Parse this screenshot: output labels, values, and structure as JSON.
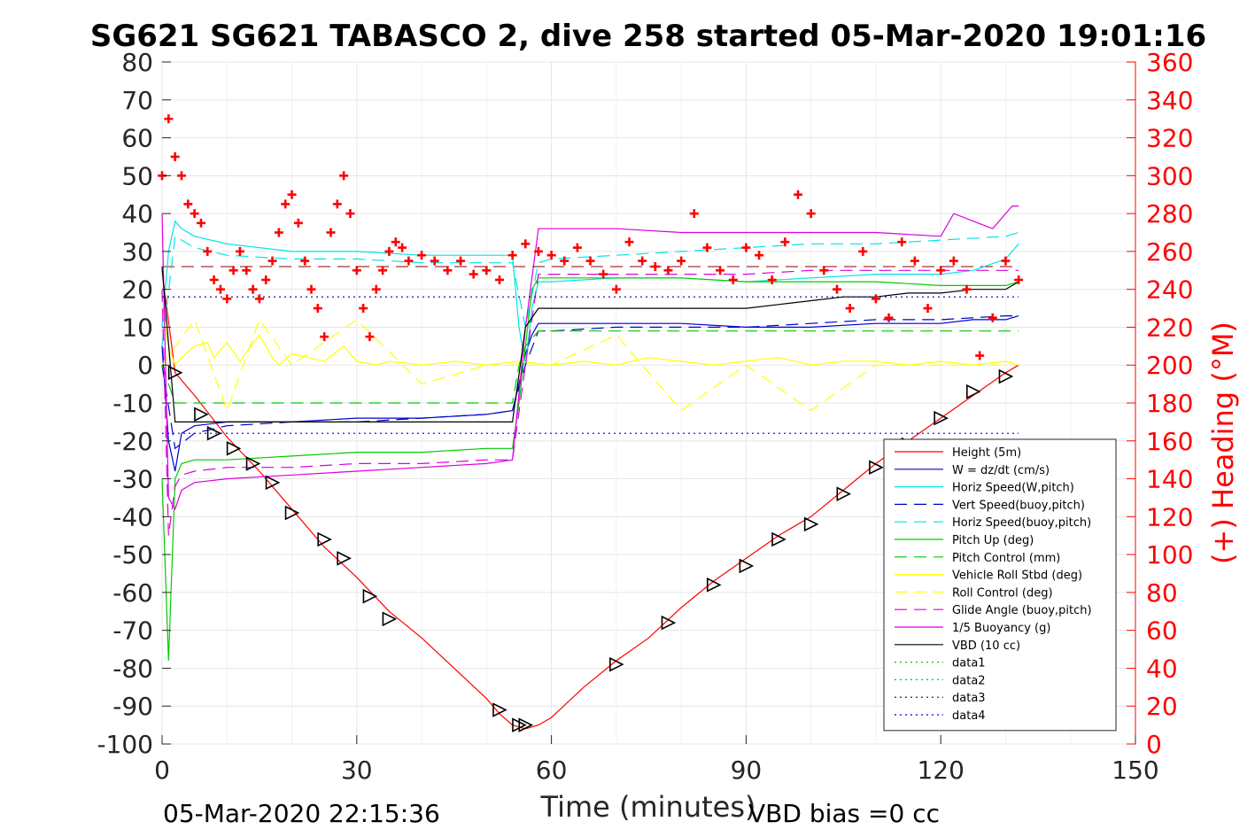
{
  "chart_data": {
    "type": "line",
    "title": "SG621 SG621 TABASCO 2, dive 258 started 05-Mar-2020 19:01:16",
    "xlabel": "Time (minutes)",
    "ylabel": "",
    "ylabel_right": "(+) Heading (°M)",
    "xlim": [
      0,
      150
    ],
    "ylim": [
      -100,
      80
    ],
    "ylim_right": [
      0,
      360
    ],
    "x_ticks": [
      "0",
      "30",
      "60",
      "90",
      "120",
      "150"
    ],
    "y_ticks": [
      "80",
      "70",
      "60",
      "50",
      "40",
      "30",
      "20",
      "10",
      "0",
      "-10",
      "-20",
      "-30",
      "-40",
      "-50",
      "-60",
      "-70",
      "-80",
      "-90",
      "-100"
    ],
    "y_ticks_right": [
      "360",
      "340",
      "320",
      "300",
      "280",
      "260",
      "240",
      "220",
      "200",
      "180",
      "160",
      "140",
      "120",
      "100",
      "80",
      "60",
      "40",
      "20",
      "0"
    ],
    "grid": true,
    "legend_position": "bottom-right",
    "footer_left": "05-Mar-2020 22:15:36",
    "footer_right": "VBD bias =0 cc",
    "series": [
      {
        "name": "Height (5m)",
        "color": "#ff0000",
        "style": "solid",
        "x": [
          0,
          2,
          5,
          10,
          15,
          20,
          25,
          30,
          35,
          40,
          45,
          50,
          52,
          54,
          56,
          58,
          60,
          65,
          70,
          75,
          80,
          85,
          90,
          95,
          100,
          105,
          110,
          115,
          120,
          125,
          130,
          132
        ],
        "values": [
          25,
          -2,
          -8,
          -19,
          -28,
          -38,
          -48,
          -56,
          -65,
          -72,
          -80,
          -88,
          -92,
          -95,
          -96,
          -95,
          -93,
          -85,
          -78,
          -72,
          -64,
          -57,
          -51,
          -45,
          -40,
          -33,
          -26,
          -20,
          -14,
          -8,
          -2,
          0
        ]
      },
      {
        "name": "W = dz/dt (cm/s)",
        "color": "#0000cc",
        "style": "solid",
        "x": [
          0,
          1,
          2,
          3,
          5,
          10,
          20,
          30,
          40,
          50,
          54,
          55,
          56,
          57,
          58,
          60,
          70,
          80,
          90,
          100,
          110,
          120,
          125,
          130,
          132
        ],
        "values": [
          5,
          -20,
          -28,
          -18,
          -16,
          -15,
          -15,
          -14,
          -14,
          -13,
          -12,
          -5,
          3,
          8,
          11,
          11,
          11,
          11,
          10,
          10,
          11,
          11,
          12,
          12,
          13
        ]
      },
      {
        "name": "Horiz Speed(W,pitch)",
        "color": "#00e5e5",
        "style": "solid",
        "x": [
          0,
          1,
          2,
          3,
          5,
          10,
          20,
          30,
          40,
          50,
          54,
          55,
          56,
          57,
          58,
          60,
          70,
          80,
          90,
          100,
          110,
          120,
          125,
          130,
          132
        ],
        "values": [
          10,
          30,
          38,
          36,
          34,
          32,
          30,
          30,
          29,
          29,
          29,
          10,
          0,
          15,
          22,
          22,
          23,
          23,
          22,
          23,
          24,
          24,
          25,
          28,
          32
        ]
      },
      {
        "name": "Vert Speed(buoy,pitch)",
        "color": "#0000cc",
        "style": "dashed",
        "x": [
          0,
          2,
          5,
          10,
          20,
          30,
          40,
          50,
          54,
          56,
          58,
          60,
          70,
          80,
          90,
          100,
          110,
          120,
          130,
          132
        ],
        "values": [
          0,
          -22,
          -18,
          -16,
          -15,
          -15,
          -14,
          -13,
          -12,
          0,
          9,
          9,
          10,
          10,
          10,
          11,
          12,
          12,
          13,
          13
        ]
      },
      {
        "name": "Horiz Speed(buoy,pitch)",
        "color": "#00e5e5",
        "style": "dashed",
        "x": [
          0,
          2,
          5,
          10,
          20,
          30,
          40,
          50,
          54,
          56,
          58,
          60,
          70,
          80,
          90,
          100,
          110,
          120,
          130,
          132
        ],
        "values": [
          5,
          34,
          31,
          29,
          28,
          28,
          27,
          27,
          27,
          10,
          27,
          28,
          29,
          30,
          31,
          32,
          32,
          33,
          34,
          35
        ]
      },
      {
        "name": "Pitch Up (deg)",
        "color": "#00cc00",
        "style": "solid",
        "x": [
          0,
          1,
          2,
          3,
          5,
          10,
          20,
          30,
          40,
          50,
          54,
          55,
          56,
          57,
          58,
          60,
          70,
          80,
          90,
          100,
          110,
          120,
          125,
          130,
          132
        ],
        "values": [
          -30,
          -78,
          -30,
          -26,
          -25,
          -25,
          -24,
          -23,
          -23,
          -22,
          -22,
          -10,
          5,
          20,
          23,
          23,
          23,
          23,
          22,
          22,
          22,
          21,
          21,
          21,
          22
        ]
      },
      {
        "name": "Pitch Control (mm)",
        "color": "#00cc00",
        "style": "dashed",
        "x": [
          0,
          2,
          5,
          54,
          55,
          56,
          58,
          132
        ],
        "values": [
          0,
          -10,
          -10,
          -10,
          0,
          5,
          9,
          9
        ]
      },
      {
        "name": "Vehicle Roll Stbd (deg)",
        "color": "#ffff00",
        "style": "solid",
        "x": [
          0,
          1,
          2,
          3,
          5,
          7,
          8,
          10,
          12,
          15,
          17,
          18,
          20,
          25,
          28,
          30,
          33,
          35,
          40,
          45,
          50,
          55,
          60,
          65,
          70,
          75,
          80,
          85,
          90,
          95,
          100,
          105,
          110,
          115,
          120,
          125,
          130,
          132
        ],
        "values": [
          15,
          5,
          0,
          2,
          5,
          6,
          2,
          6,
          1,
          8,
          2,
          0,
          3,
          1,
          5,
          1,
          0,
          1,
          0,
          1,
          0,
          1,
          0,
          1,
          0,
          2,
          1,
          0,
          1,
          2,
          0,
          1,
          1,
          0,
          1,
          0,
          1,
          0
        ]
      },
      {
        "name": "Roll Control (deg)",
        "color": "#ffff00",
        "style": "dashed",
        "x": [
          0,
          5,
          10,
          15,
          20,
          30,
          40,
          50,
          60,
          70,
          80,
          90,
          100,
          110,
          120,
          130
        ],
        "values": [
          0,
          12,
          -12,
          12,
          0,
          12,
          -5,
          0,
          0,
          8,
          -12,
          0,
          -12,
          0,
          0,
          0
        ]
      },
      {
        "name": "Glide Angle (buoy,pitch)",
        "color": "#dd00dd",
        "style": "dashed",
        "x": [
          0,
          1,
          2,
          3,
          5,
          10,
          20,
          30,
          40,
          50,
          54,
          56,
          58,
          60,
          70,
          80,
          90,
          100,
          110,
          120,
          130,
          132
        ],
        "values": [
          20,
          -45,
          -32,
          -29,
          -28,
          -27,
          -27,
          -26,
          -26,
          -25,
          -25,
          0,
          24,
          24,
          24,
          24,
          24,
          25,
          25,
          25,
          25,
          25
        ]
      },
      {
        "name": "1/5 Buoyancy (g)",
        "color": "#dd00dd",
        "style": "solid",
        "x": [
          0,
          1,
          2,
          3,
          5,
          10,
          20,
          30,
          40,
          50,
          54,
          56,
          58,
          60,
          70,
          80,
          90,
          100,
          110,
          120,
          122,
          125,
          128,
          131,
          132
        ],
        "values": [
          40,
          -35,
          -38,
          -33,
          -31,
          -30,
          -29,
          -28,
          -27,
          -26,
          -25,
          10,
          36,
          36,
          36,
          35,
          35,
          35,
          35,
          34,
          40,
          38,
          36,
          42,
          42
        ]
      },
      {
        "name": "VBD (10 cc)",
        "color": "#000000",
        "style": "solid",
        "x": [
          0,
          2,
          53,
          54,
          56,
          58,
          75,
          90,
          95,
          100,
          105,
          110,
          115,
          120,
          125,
          130,
          132
        ],
        "values": [
          26,
          -15,
          -15,
          -15,
          10,
          15,
          15,
          15,
          16,
          17,
          18,
          18,
          19,
          19,
          20,
          20,
          22
        ]
      },
      {
        "name": "data1",
        "color": "#00cc00",
        "style": "dotted",
        "x": [],
        "values": []
      },
      {
        "name": "data2",
        "color": "#00cc00",
        "style": "dotted",
        "x": [],
        "values": []
      },
      {
        "name": "data3",
        "color": "#00008b",
        "style": "dotted",
        "x": [
          0,
          132
        ],
        "values": [
          18,
          18
        ]
      },
      {
        "name": "data4",
        "color": "#0000cc",
        "style": "dotted",
        "x": [
          0,
          132
        ],
        "values": [
          -18,
          -18
        ]
      }
    ],
    "reference_lines": [
      {
        "color": "#8b0000",
        "style": "dashed",
        "y": 26,
        "x": [
          0,
          132
        ]
      }
    ],
    "heading": {
      "axis": "right",
      "color": "#ff0000",
      "marker": "+",
      "x": [
        0,
        1,
        2,
        3,
        4,
        5,
        6,
        7,
        8,
        9,
        10,
        11,
        12,
        13,
        14,
        15,
        16,
        17,
        18,
        19,
        20,
        21,
        22,
        23,
        24,
        25,
        26,
        27,
        28,
        29,
        30,
        31,
        32,
        33,
        34,
        35,
        36,
        37,
        38,
        40,
        42,
        44,
        46,
        48,
        50,
        52,
        54,
        56,
        58,
        60,
        62,
        64,
        66,
        68,
        70,
        72,
        74,
        76,
        78,
        80,
        82,
        84,
        86,
        88,
        90,
        92,
        94,
        96,
        98,
        100,
        102,
        104,
        106,
        108,
        110,
        112,
        114,
        116,
        118,
        120,
        122,
        124,
        126,
        128,
        130,
        132
      ],
      "values": [
        300,
        330,
        310,
        300,
        285,
        280,
        275,
        260,
        245,
        240,
        235,
        250,
        260,
        250,
        240,
        235,
        245,
        255,
        270,
        285,
        290,
        275,
        255,
        240,
        230,
        215,
        270,
        285,
        300,
        280,
        250,
        230,
        215,
        240,
        250,
        260,
        265,
        262,
        255,
        258,
        255,
        250,
        255,
        248,
        250,
        245,
        258,
        264,
        260,
        258,
        255,
        262,
        255,
        248,
        240,
        265,
        255,
        252,
        250,
        255,
        280,
        262,
        250,
        245,
        262,
        258,
        245,
        265,
        290,
        280,
        250,
        240,
        230,
        260,
        235,
        225,
        265,
        255,
        230,
        250,
        255,
        240,
        205,
        225,
        255,
        245
      ]
    },
    "markers": {
      "symbol": "triangle",
      "color": "#000000",
      "x": [
        2,
        6,
        8,
        11,
        14,
        17,
        20,
        25,
        28,
        32,
        35,
        52,
        55,
        56,
        70,
        78,
        85,
        90,
        95,
        100,
        105,
        110,
        115,
        120,
        125,
        130
      ],
      "values": [
        -2,
        -13,
        -18,
        -22,
        -26,
        -31,
        -39,
        -46,
        -51,
        -61,
        -67,
        -91,
        -95,
        -95,
        -79,
        -68,
        -58,
        -53,
        -46,
        -42,
        -34,
        -27,
        -21,
        -14,
        -7,
        -3
      ]
    }
  }
}
